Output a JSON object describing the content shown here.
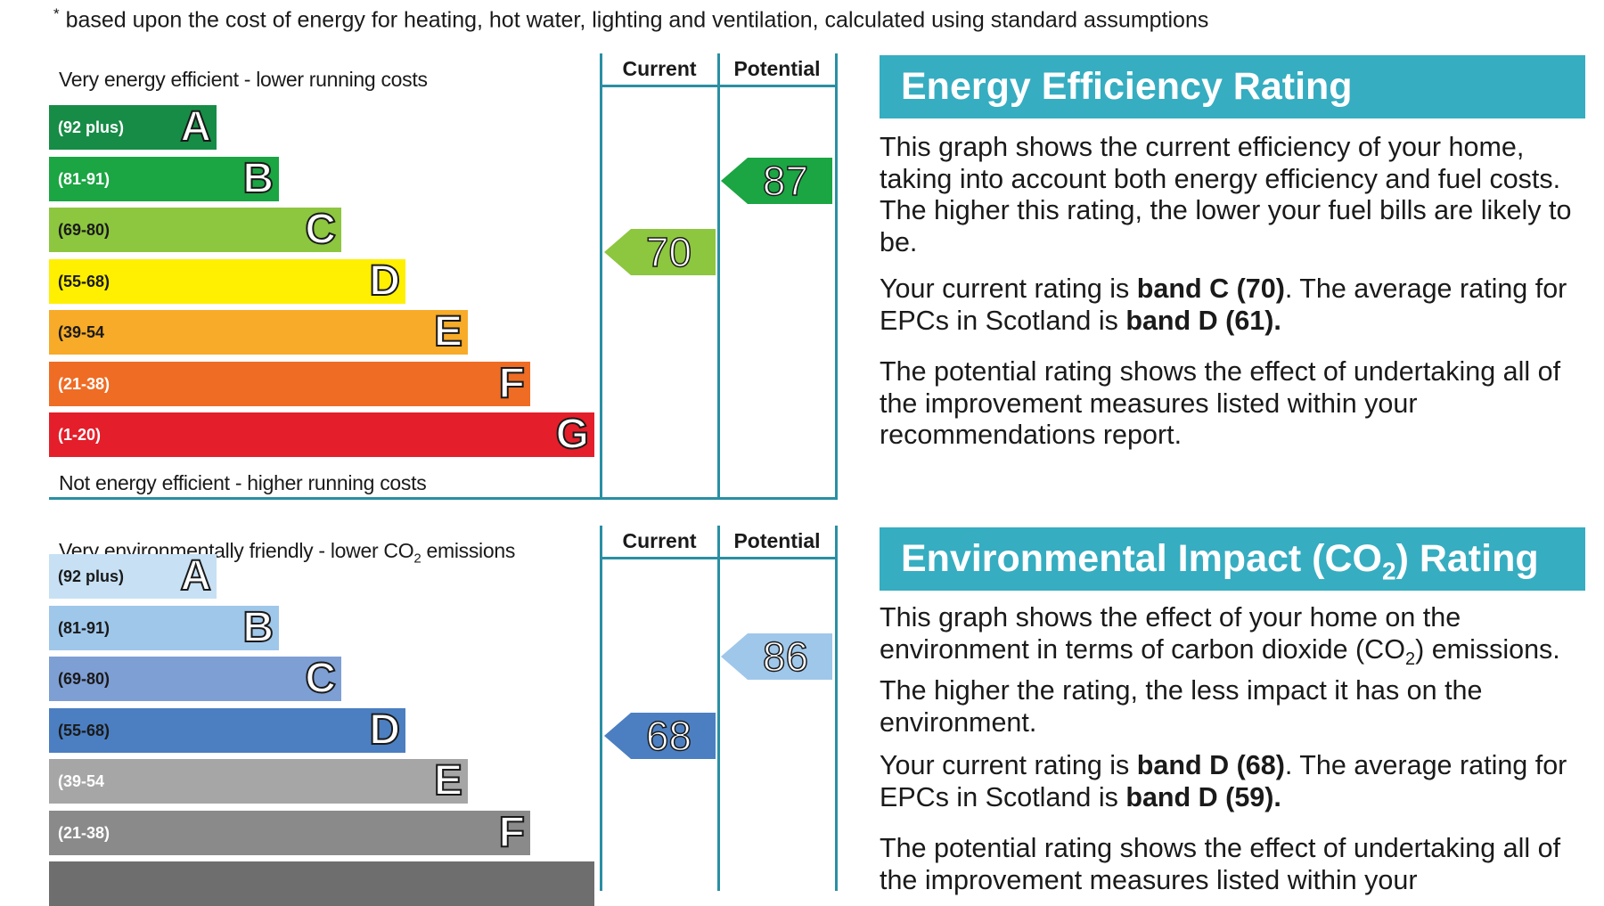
{
  "footnote": {
    "marker": "*",
    "text": "based upon the cost of energy for heating, hot water, lighting and ventilation, calculated using standard assumptions"
  },
  "energy_chart": {
    "top_label": "Very energy efficient - lower running costs",
    "bottom_label": "Not energy efficient - higher running costs",
    "col_current": "Current",
    "col_potential": "Potential",
    "bands": [
      {
        "letter": "A",
        "range": "(92 plus)",
        "color": "#178c46"
      },
      {
        "letter": "B",
        "range": "(81-91)",
        "color": "#1ba543"
      },
      {
        "letter": "C",
        "range": "(69-80)",
        "color": "#8dc63f"
      },
      {
        "letter": "D",
        "range": "(55-68)",
        "color": "#ffef00"
      },
      {
        "letter": "E",
        "range": "(39-54",
        "color": "#f7ab28"
      },
      {
        "letter": "F",
        "range": "(21-38)",
        "color": "#ef6c24"
      },
      {
        "letter": "G",
        "range": "(1-20)",
        "color": "#e41e2a"
      }
    ],
    "current": {
      "value": "70",
      "band": "C",
      "color": "#8dc63f"
    },
    "potential": {
      "value": "87",
      "band": "B",
      "color": "#1ba543"
    }
  },
  "environment_chart": {
    "top_label_pre": "Very environmentally friendly - lower CO",
    "top_label_sub": "2",
    "top_label_post": " emissions",
    "col_current": "Current",
    "col_potential": "Potential",
    "bands": [
      {
        "letter": "A",
        "range": "(92 plus)",
        "color": "#c7e0f4"
      },
      {
        "letter": "B",
        "range": "(81-91)",
        "color": "#9fc7ea"
      },
      {
        "letter": "C",
        "range": "(69-80)",
        "color": "#7e9fd4"
      },
      {
        "letter": "D",
        "range": "(55-68)",
        "color": "#4b7fc1"
      },
      {
        "letter": "E",
        "range": "(39-54",
        "color": "#a6a6a6"
      },
      {
        "letter": "F",
        "range": "(21-38)",
        "color": "#8a8a8a"
      }
    ],
    "current": {
      "value": "68",
      "band": "D",
      "color": "#4b7fc1"
    },
    "potential": {
      "value": "86",
      "band": "B",
      "color": "#9fc7ea"
    }
  },
  "energy_section": {
    "heading": "Energy Efficiency Rating",
    "p1": "This graph shows the current efficiency of your home, taking into account both energy efficiency and fuel costs. The higher this rating, the lower your fuel bills are likely to be.",
    "p2_a": "Your current rating is ",
    "p2_b": "band C (70)",
    "p2_c": ". The average rating for EPCs in Scotland is ",
    "p2_d": "band D (61).",
    "p3": "The potential rating shows the effect of undertaking all of the improvement measures listed within your recommendations report."
  },
  "environment_section": {
    "heading_pre": "Environmental Impact (CO",
    "heading_sub": "2",
    "heading_post": ") Rating",
    "p1_a": "This graph shows the effect of your home on the environment in terms of carbon dioxide (CO",
    "p1_sub": "2",
    "p1_b": ") emissions. The higher the rating, the less impact it has on the environment.",
    "p2_a": "Your current rating is ",
    "p2_b": "band D (68)",
    "p2_c": ". The average rating for EPCs in Scotland is ",
    "p2_d": "band D (59).",
    "p3": "The potential rating shows the effect of undertaking all of the improvement measures listed within your"
  }
}
